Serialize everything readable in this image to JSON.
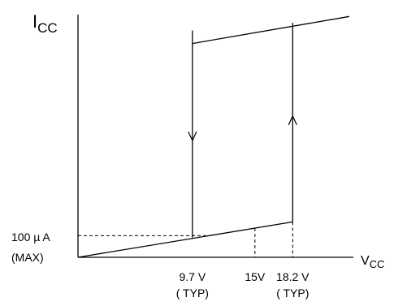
{
  "chart_data": {
    "type": "line",
    "title": "",
    "xlabel": "",
    "ylabel": "",
    "y_axis_label": {
      "main": "I",
      "sub": "CC"
    },
    "x_axis_label": {
      "main": "V",
      "sub": "CC"
    },
    "xlim": [
      0,
      23
    ],
    "x_ticks": [
      {
        "value": 9.7,
        "line1": "9.7 V",
        "line2": "( TYP)"
      },
      {
        "value": 15,
        "line1": "15V",
        "line2": ""
      },
      {
        "value": 18.2,
        "line1": "18.2 V",
        "line2": "( TYP)"
      }
    ],
    "y_reference": {
      "value": 100,
      "line1": "100 µ A",
      "line2": "(MAX)"
    },
    "series": [
      {
        "x": [
          0,
          18.2
        ],
        "y": [
          0,
          164
        ]
      },
      {
        "x": [
          9.7,
          23
        ],
        "y": [
          990,
          1115
        ]
      }
    ],
    "transitions": [
      {
        "x": 18.2,
        "from": 164,
        "to": 1085,
        "direction": "up"
      },
      {
        "x": 9.7,
        "from": 1050,
        "to": 91,
        "direction": "down"
      }
    ],
    "grid": false,
    "legend": "none"
  }
}
